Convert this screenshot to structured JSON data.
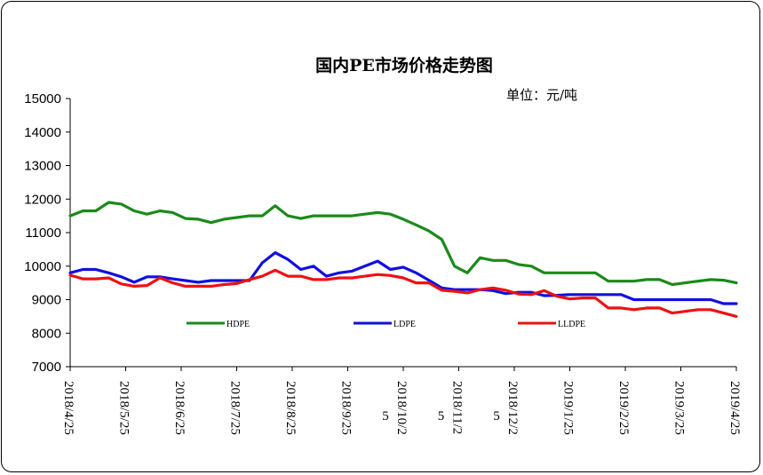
{
  "chart_data": {
    "type": "line",
    "title": "国内PE市场价格走势图",
    "unit_label": "单位：元/吨",
    "ylim": [
      7000,
      15000
    ],
    "y_ticks": [
      "7000",
      "8000",
      "9000",
      "10000",
      "11000",
      "12000",
      "13000",
      "14000",
      "15000"
    ],
    "x_tick_labels": [
      {
        "text": "2018/4/25",
        "overflow": ""
      },
      {
        "text": "2018/5/25",
        "overflow": ""
      },
      {
        "text": "2018/6/25",
        "overflow": ""
      },
      {
        "text": "2018/7/25",
        "overflow": ""
      },
      {
        "text": "2018/8/25",
        "overflow": ""
      },
      {
        "text": "2018/9/25",
        "overflow": ""
      },
      {
        "text": "2018/10/2",
        "overflow": "5"
      },
      {
        "text": "2018/11/2",
        "overflow": "5"
      },
      {
        "text": "2018/12/2",
        "overflow": "5"
      },
      {
        "text": "2019/1/25",
        "overflow": ""
      },
      {
        "text": "2019/2/25",
        "overflow": ""
      },
      {
        "text": "2019/3/25",
        "overflow": ""
      },
      {
        "text": "2019/4/25",
        "overflow": ""
      }
    ],
    "grid": false,
    "legend_position": "inside-bottom",
    "series": [
      {
        "name": "HDPE",
        "color": "#1a8a1a",
        "values": [
          11500,
          11650,
          11650,
          11900,
          11850,
          11650,
          11550,
          11650,
          11600,
          11420,
          11400,
          11300,
          11400,
          11450,
          11500,
          11500,
          11800,
          11500,
          11420,
          11500,
          11500,
          11500,
          11500,
          11550,
          11600,
          11550,
          11400,
          11230,
          11050,
          10800,
          10000,
          9800,
          10250,
          10170,
          10170,
          10050,
          10000,
          9800,
          9800,
          9800,
          9800,
          9800,
          9550,
          9550,
          9550,
          9600,
          9600,
          9450,
          9500,
          9550,
          9600,
          9580,
          9500
        ]
      },
      {
        "name": "LDPE",
        "color": "#1010e0",
        "values": [
          9800,
          9900,
          9900,
          9800,
          9680,
          9520,
          9680,
          9680,
          9620,
          9570,
          9520,
          9570,
          9570,
          9570,
          9570,
          10100,
          10400,
          10200,
          9900,
          10000,
          9700,
          9800,
          9850,
          10000,
          10150,
          9900,
          9970,
          9800,
          9580,
          9350,
          9300,
          9300,
          9300,
          9270,
          9180,
          9220,
          9220,
          9120,
          9130,
          9150,
          9150,
          9150,
          9150,
          9150,
          9000,
          9000,
          9000,
          9000,
          9000,
          9000,
          9000,
          8880,
          8880
        ]
      },
      {
        "name": "LLDPE",
        "color": "#ee1111",
        "values": [
          9730,
          9620,
          9620,
          9650,
          9470,
          9400,
          9420,
          9650,
          9500,
          9400,
          9400,
          9400,
          9450,
          9480,
          9600,
          9700,
          9880,
          9700,
          9700,
          9600,
          9600,
          9650,
          9650,
          9700,
          9750,
          9720,
          9650,
          9500,
          9500,
          9280,
          9250,
          9200,
          9300,
          9350,
          9280,
          9170,
          9150,
          9270,
          9100,
          9020,
          9050,
          9050,
          8750,
          8750,
          8700,
          8750,
          8750,
          8600,
          8650,
          8700,
          8700,
          8600,
          8500
        ]
      }
    ]
  }
}
